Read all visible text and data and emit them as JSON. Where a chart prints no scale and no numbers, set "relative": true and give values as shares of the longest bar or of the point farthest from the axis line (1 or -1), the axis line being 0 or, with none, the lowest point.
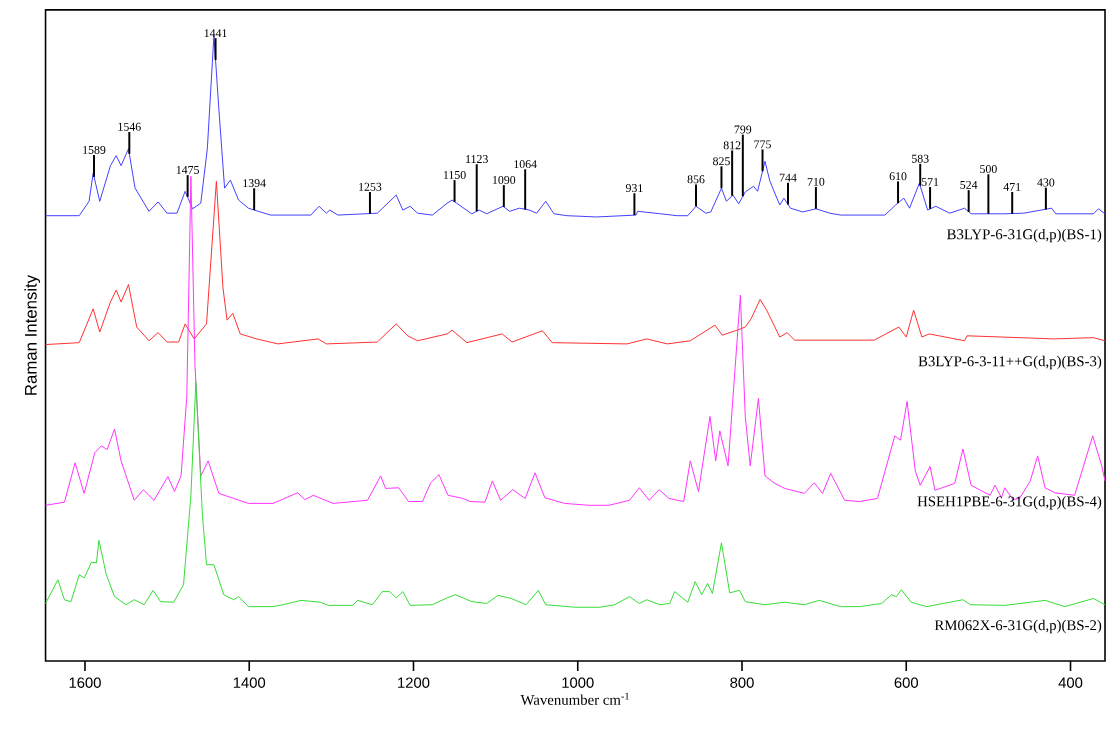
{
  "chart_data": {
    "type": "line",
    "relative": true,
    "marker": "none",
    "xlabel": "Wavenumber cm$^{-1}$",
    "ylabel": "Raman Intensity",
    "xlim": [
      1648,
      358
    ],
    "xticks": [
      1600,
      1400,
      1200,
      1000,
      800,
      600,
      400
    ],
    "series": [
      {
        "name": "B3LYP-6-31G(d,p)(BS-1)",
        "color": "#4040ff",
        "x": [
          1648,
          1607,
          1595,
          1590,
          1582,
          1569,
          1562,
          1556,
          1547,
          1539,
          1522,
          1511,
          1500,
          1488,
          1478,
          1469,
          1459,
          1451,
          1443,
          1437,
          1430,
          1423,
          1413,
          1401,
          1389,
          1374,
          1325,
          1315,
          1306,
          1302,
          1292,
          1244,
          1221,
          1213,
          1204,
          1195,
          1177,
          1159,
          1153,
          1129,
          1120,
          1111,
          1091,
          1083,
          1071,
          1059,
          1050,
          1039,
          1029,
          1013,
          977,
          929,
          927,
          899,
          879,
          866,
          856,
          844,
          838,
          825,
          819,
          811,
          804,
          796,
          786,
          781,
          772,
          766,
          754,
          749,
          741,
          726,
          710,
          693,
          680,
          626,
          613,
          603,
          596,
          584,
          574,
          564,
          547,
          529,
          521,
          481,
          457,
          423,
          418,
          372,
          366,
          358
        ],
        "values": [
          0.712,
          0.712,
          0.735,
          0.78,
          0.735,
          0.792,
          0.808,
          0.792,
          0.819,
          0.756,
          0.719,
          0.734,
          0.716,
          0.716,
          0.751,
          0.723,
          0.732,
          0.819,
          1.0,
          0.883,
          0.756,
          0.769,
          0.737,
          0.724,
          0.719,
          0.713,
          0.713,
          0.727,
          0.716,
          0.721,
          0.713,
          0.716,
          0.745,
          0.721,
          0.727,
          0.716,
          0.713,
          0.732,
          0.737,
          0.715,
          0.721,
          0.715,
          0.727,
          0.719,
          0.724,
          0.721,
          0.716,
          0.735,
          0.715,
          0.712,
          0.71,
          0.713,
          0.719,
          0.715,
          0.712,
          0.712,
          0.727,
          0.716,
          0.718,
          0.756,
          0.735,
          0.745,
          0.731,
          0.75,
          0.759,
          0.751,
          0.799,
          0.767,
          0.729,
          0.74,
          0.724,
          0.718,
          0.723,
          0.716,
          0.713,
          0.713,
          0.729,
          0.74,
          0.724,
          0.764,
          0.721,
          0.727,
          0.716,
          0.724,
          0.715,
          0.715,
          0.716,
          0.724,
          0.715,
          0.715,
          0.723,
          0.715
        ]
      },
      {
        "name": "B3LYP-6-3-11++G(d,p)(BS-3)",
        "color": "#ff3030",
        "x": [
          1648,
          1607,
          1590,
          1582,
          1569,
          1562,
          1556,
          1547,
          1537,
          1522,
          1511,
          1500,
          1486,
          1478,
          1467,
          1452,
          1440,
          1432,
          1427,
          1420,
          1411,
          1391,
          1365,
          1316,
          1306,
          1244,
          1221,
          1207,
          1195,
          1159,
          1153,
          1135,
          1092,
          1080,
          1043,
          1031,
          940,
          916,
          891,
          863,
          833,
          824,
          806,
          796,
          789,
          778,
          770,
          754,
          745,
          736,
          639,
          609,
          600,
          591,
          581,
          572,
          529,
          526,
          420,
          372,
          358
        ],
        "values": [
          0.506,
          0.509,
          0.563,
          0.526,
          0.574,
          0.593,
          0.574,
          0.602,
          0.534,
          0.512,
          0.525,
          0.51,
          0.51,
          0.539,
          0.515,
          0.539,
          0.767,
          0.597,
          0.545,
          0.556,
          0.523,
          0.515,
          0.507,
          0.515,
          0.507,
          0.51,
          0.539,
          0.52,
          0.512,
          0.523,
          0.529,
          0.509,
          0.523,
          0.51,
          0.528,
          0.509,
          0.507,
          0.515,
          0.507,
          0.512,
          0.537,
          0.521,
          0.529,
          0.534,
          0.547,
          0.578,
          0.561,
          0.518,
          0.525,
          0.513,
          0.513,
          0.534,
          0.518,
          0.561,
          0.518,
          0.523,
          0.512,
          0.52,
          0.515,
          0.517,
          0.512
        ]
      },
      {
        "name": "HSEH1PBE-6-31G(d,p)(BS-4)",
        "color": "#ff33ff",
        "x": [
          1648,
          1625,
          1612,
          1601,
          1588,
          1580,
          1573,
          1564,
          1556,
          1540,
          1529,
          1516,
          1499,
          1491,
          1483,
          1476,
          1471,
          1466,
          1459,
          1450,
          1437,
          1419,
          1401,
          1371,
          1341,
          1332,
          1322,
          1298,
          1256,
          1240,
          1234,
          1218,
          1206,
          1189,
          1179,
          1169,
          1158,
          1140,
          1131,
          1113,
          1104,
          1094,
          1079,
          1064,
          1052,
          1040,
          1016,
          986,
          962,
          937,
          925,
          913,
          901,
          889,
          871,
          863,
          853,
          839,
          832,
          827,
          817,
          802,
          796,
          790,
          780,
          772,
          760,
          748,
          724,
          712,
          702,
          692,
          675,
          657,
          635,
          614,
          607,
          599,
          589,
          583,
          571,
          565,
          541,
          531,
          521,
          498,
          492,
          484,
          480,
          470,
          462,
          449,
          440,
          431,
          419,
          395,
          373,
          362,
          358
        ],
        "values": [
          0.249,
          0.254,
          0.317,
          0.268,
          0.333,
          0.344,
          0.338,
          0.371,
          0.32,
          0.257,
          0.274,
          0.257,
          0.295,
          0.271,
          0.296,
          0.423,
          0.775,
          0.471,
          0.296,
          0.32,
          0.268,
          0.26,
          0.252,
          0.252,
          0.269,
          0.258,
          0.265,
          0.252,
          0.257,
          0.296,
          0.276,
          0.277,
          0.255,
          0.255,
          0.285,
          0.298,
          0.265,
          0.26,
          0.255,
          0.254,
          0.288,
          0.257,
          0.274,
          0.26,
          0.301,
          0.261,
          0.252,
          0.249,
          0.249,
          0.257,
          0.277,
          0.257,
          0.274,
          0.26,
          0.255,
          0.32,
          0.271,
          0.391,
          0.32,
          0.368,
          0.312,
          0.585,
          0.391,
          0.312,
          0.42,
          0.296,
          0.284,
          0.276,
          0.268,
          0.285,
          0.268,
          0.3,
          0.257,
          0.255,
          0.26,
          0.36,
          0.353,
          0.415,
          0.304,
          0.281,
          0.311,
          0.273,
          0.284,
          0.339,
          0.281,
          0.265,
          0.281,
          0.261,
          0.277,
          0.258,
          0.26,
          0.288,
          0.328,
          0.277,
          0.269,
          0.265,
          0.36,
          0.312,
          0.288
        ]
      },
      {
        "name": "RM062X-6-31G(d,p)(BS-2)",
        "color": "#33dd33",
        "x": [
          1648,
          1633,
          1625,
          1617,
          1607,
          1601,
          1592,
          1586,
          1583,
          1574,
          1564,
          1550,
          1540,
          1528,
          1517,
          1508,
          1492,
          1480,
          1471,
          1465,
          1457,
          1452,
          1443,
          1431,
          1419,
          1413,
          1401,
          1371,
          1359,
          1337,
          1313,
          1304,
          1274,
          1268,
          1250,
          1238,
          1229,
          1221,
          1213,
          1204,
          1177,
          1159,
          1149,
          1129,
          1111,
          1097,
          1081,
          1063,
          1048,
          1039,
          1003,
          973,
          955,
          937,
          925,
          916,
          900,
          888,
          882,
          866,
          857,
          849,
          842,
          836,
          825,
          815,
          803,
          796,
          772,
          748,
          724,
          706,
          680,
          657,
          630,
          618,
          612,
          606,
          594,
          575,
          531,
          522,
          480,
          431,
          407,
          372,
          358
        ],
        "values": [
          0.092,
          0.13,
          0.098,
          0.095,
          0.138,
          0.133,
          0.158,
          0.157,
          0.193,
          0.138,
          0.103,
          0.09,
          0.098,
          0.09,
          0.113,
          0.095,
          0.094,
          0.122,
          0.265,
          0.447,
          0.233,
          0.154,
          0.154,
          0.106,
          0.098,
          0.103,
          0.087,
          0.087,
          0.09,
          0.097,
          0.094,
          0.089,
          0.089,
          0.097,
          0.09,
          0.111,
          0.111,
          0.101,
          0.111,
          0.089,
          0.09,
          0.101,
          0.106,
          0.095,
          0.092,
          0.105,
          0.1,
          0.09,
          0.113,
          0.09,
          0.086,
          0.086,
          0.09,
          0.103,
          0.092,
          0.098,
          0.09,
          0.092,
          0.111,
          0.094,
          0.127,
          0.106,
          0.124,
          0.108,
          0.189,
          0.109,
          0.113,
          0.095,
          0.09,
          0.094,
          0.09,
          0.097,
          0.087,
          0.087,
          0.092,
          0.106,
          0.103,
          0.114,
          0.094,
          0.087,
          0.098,
          0.09,
          0.089,
          0.097,
          0.087,
          0.1,
          0.09
        ]
      }
    ],
    "annotations": [
      {
        "text": "1589",
        "x": 1589,
        "y": 0.774
      },
      {
        "text": "1546",
        "x": 1546,
        "y": 0.811
      },
      {
        "text": "1475",
        "x": 1475,
        "y": 0.742
      },
      {
        "text": "1441",
        "x": 1441,
        "y": 0.961
      },
      {
        "text": "1394",
        "x": 1394,
        "y": 0.721
      },
      {
        "text": "1253",
        "x": 1253,
        "y": 0.715
      },
      {
        "text": "1150",
        "x": 1150,
        "y": 0.734
      },
      {
        "text": "1123",
        "x": 1123,
        "y": 0.719
      },
      {
        "text": "1090",
        "x": 1090,
        "y": 0.726
      },
      {
        "text": "1064",
        "x": 1064,
        "y": 0.722
      },
      {
        "text": "931",
        "x": 931,
        "y": 0.713
      },
      {
        "text": "856",
        "x": 856,
        "y": 0.727
      },
      {
        "text": "825",
        "x": 825,
        "y": 0.756
      },
      {
        "text": "812",
        "x": 812,
        "y": 0.744
      },
      {
        "text": "799",
        "x": 799,
        "y": 0.743
      },
      {
        "text": "775",
        "x": 775,
        "y": 0.783
      },
      {
        "text": "744",
        "x": 744,
        "y": 0.73
      },
      {
        "text": "710",
        "x": 710,
        "y": 0.723
      },
      {
        "text": "610",
        "x": 610,
        "y": 0.732
      },
      {
        "text": "583",
        "x": 583,
        "y": 0.76
      },
      {
        "text": "571",
        "x": 571,
        "y": 0.723
      },
      {
        "text": "524",
        "x": 524,
        "y": 0.718
      },
      {
        "text": "500",
        "x": 500,
        "y": 0.715
      },
      {
        "text": "471",
        "x": 471,
        "y": 0.715
      },
      {
        "text": "430",
        "x": 430,
        "y": 0.722
      }
    ]
  }
}
